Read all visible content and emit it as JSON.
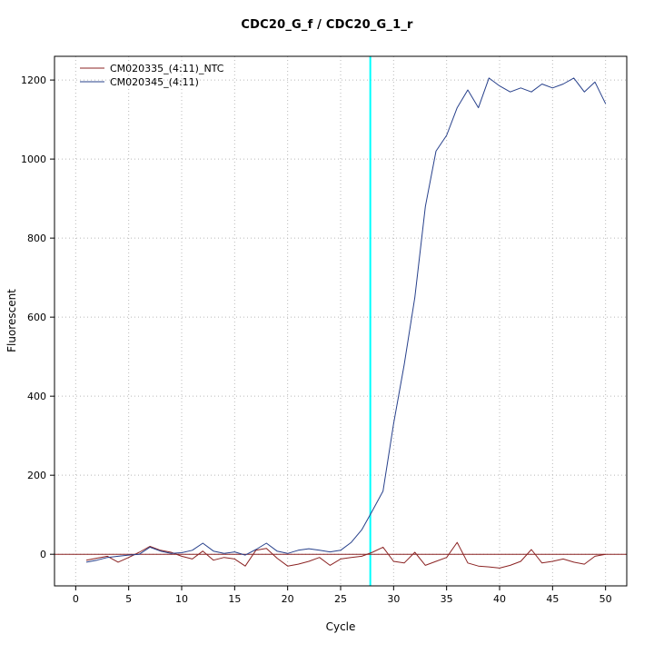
{
  "chart_data": {
    "type": "line",
    "title": "CDC20_G_f / CDC20_G_1_r",
    "xlabel": "Cycle",
    "ylabel": "Fluorescent",
    "xlim": [
      -2,
      52
    ],
    "ylim": [
      -80,
      1260
    ],
    "xticks": [
      0,
      5,
      10,
      15,
      20,
      25,
      30,
      35,
      40,
      45,
      50
    ],
    "yticks": [
      0,
      200,
      400,
      600,
      800,
      1000,
      1200
    ],
    "grid": "dotted",
    "grid_color": "#b8b8b8",
    "legend_position": "top-left",
    "x": [
      1,
      2,
      3,
      4,
      5,
      6,
      7,
      8,
      9,
      10,
      11,
      12,
      13,
      14,
      15,
      16,
      17,
      18,
      19,
      20,
      21,
      22,
      23,
      24,
      25,
      26,
      27,
      28,
      29,
      30,
      31,
      32,
      33,
      34,
      35,
      36,
      37,
      38,
      39,
      40,
      41,
      42,
      43,
      44,
      45,
      46,
      47,
      48,
      49,
      50
    ],
    "series": [
      {
        "name": "CM020335_(4:11)_NTC",
        "color": "#8b2323",
        "values": [
          -15,
          -10,
          -5,
          -20,
          -8,
          5,
          20,
          10,
          5,
          -5,
          -12,
          8,
          -15,
          -8,
          -12,
          -30,
          10,
          15,
          -10,
          -30,
          -25,
          -18,
          -8,
          -28,
          -12,
          -8,
          -5,
          5,
          18,
          -18,
          -22,
          5,
          -28,
          -18,
          -8,
          30,
          -22,
          -30,
          -32,
          -35,
          -28,
          -18,
          12,
          -22,
          -18,
          -12,
          -20,
          -25,
          -5,
          0
        ]
      },
      {
        "name": "CM020345_(4:11)",
        "color": "#27408b",
        "values": [
          -20,
          -15,
          -8,
          -5,
          -2,
          0,
          18,
          8,
          2,
          4,
          10,
          28,
          8,
          2,
          6,
          -2,
          12,
          28,
          8,
          2,
          10,
          14,
          10,
          6,
          10,
          30,
          62,
          110,
          160,
          330,
          480,
          650,
          880,
          1020,
          1060,
          1130,
          1175,
          1130,
          1205,
          1185,
          1170,
          1180,
          1170,
          1190,
          1180,
          1190,
          1205,
          1170,
          1195,
          1140
        ]
      }
    ],
    "threshold_line": {
      "y": 0,
      "color": "#8b2323"
    },
    "ct_line": {
      "x": 27.8,
      "color": "#00ffff"
    }
  }
}
